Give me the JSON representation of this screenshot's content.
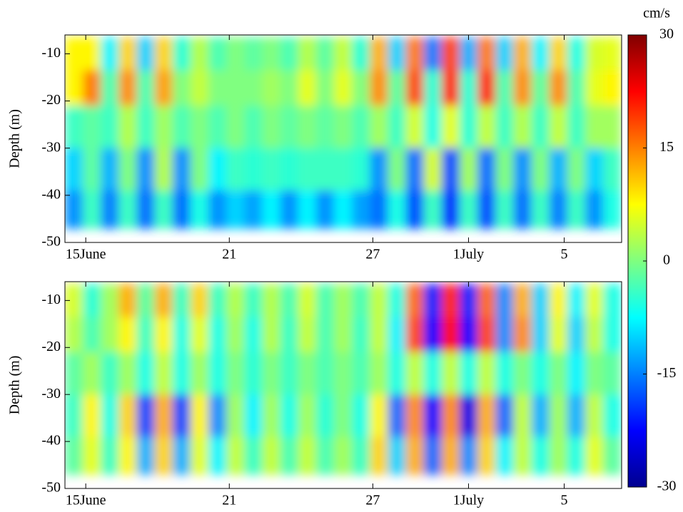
{
  "chart_data": [
    {
      "type": "heatmap",
      "ylabel": "Depth (m)",
      "x": [
        14.5,
        15.25,
        16,
        16.75,
        17.5,
        18.25,
        19,
        19.75,
        20.5,
        21.25,
        22,
        22.75,
        23.5,
        24.25,
        25,
        25.75,
        26.5,
        27.25,
        28,
        28.75,
        29.5,
        30.25,
        31,
        31.75,
        32.5,
        33.25,
        34,
        34.75,
        35.5,
        36.25,
        37
      ],
      "y": [
        -10,
        -17,
        -25,
        -35,
        -43
      ],
      "z": [
        [
          8,
          8,
          -8,
          10,
          -10,
          10,
          -5,
          3,
          -3,
          0,
          -2,
          0,
          -3,
          3,
          -2,
          4,
          -5,
          12,
          -10,
          15,
          -15,
          18,
          -12,
          15,
          -10,
          12,
          -8,
          10,
          -6,
          5,
          6
        ],
        [
          8,
          15,
          -3,
          14,
          -3,
          13,
          0,
          4,
          0,
          0,
          0,
          2,
          0,
          6,
          0,
          6,
          0,
          14,
          -2,
          18,
          -5,
          20,
          -5,
          20,
          -3,
          14,
          -2,
          14,
          -3,
          6,
          8
        ],
        [
          -4,
          -2,
          -4,
          3,
          -4,
          2,
          -3,
          0,
          -3,
          0,
          -3,
          0,
          -2,
          0,
          -2,
          0,
          -3,
          2,
          -4,
          5,
          -6,
          6,
          -5,
          4,
          -4,
          3,
          -4,
          4,
          -4,
          2,
          2
        ],
        [
          -10,
          -2,
          -12,
          0,
          -14,
          3,
          -14,
          0,
          -8,
          -4,
          -5,
          -4,
          -5,
          -4,
          -4,
          -4,
          -5,
          -14,
          0,
          -16,
          5,
          -18,
          2,
          -16,
          0,
          -14,
          0,
          -12,
          0,
          -10,
          -4
        ],
        [
          -14,
          -4,
          -15,
          -4,
          -16,
          -4,
          -16,
          -6,
          -14,
          -10,
          -13,
          -8,
          -14,
          -8,
          -14,
          -8,
          -13,
          -16,
          -6,
          -18,
          -4,
          -20,
          -4,
          -18,
          -4,
          -16,
          -4,
          -15,
          -4,
          -14,
          -6
        ]
      ],
      "xlim": [
        14.13,
        37.4
      ],
      "ylim": [
        -50,
        -6
      ],
      "xticks": [
        {
          "value": 15,
          "label": "15June"
        },
        21,
        27,
        {
          "value": 31,
          "label": "1July"
        },
        {
          "value": 35,
          "label": "5"
        }
      ],
      "yticks": [
        -50,
        -40,
        -30,
        -20,
        -10
      ]
    },
    {
      "type": "heatmap",
      "ylabel": "Depth (m)",
      "x": [
        14.5,
        15.25,
        16,
        16.75,
        17.5,
        18.25,
        19,
        19.75,
        20.5,
        21.25,
        22,
        22.75,
        23.5,
        24.25,
        25,
        25.75,
        26.5,
        27.25,
        28,
        28.75,
        29.5,
        30.25,
        31,
        31.75,
        32.5,
        33.25,
        34,
        34.75,
        35.5,
        36.25,
        37
      ],
      "y": [
        -10,
        -17,
        -25,
        -35,
        -43
      ],
      "z": [
        [
          5,
          -5,
          2,
          12,
          -2,
          12,
          -4,
          10,
          -4,
          3,
          -4,
          3,
          -3,
          5,
          -3,
          2,
          -3,
          4,
          -6,
          16,
          -20,
          20,
          -20,
          16,
          -14,
          12,
          -10,
          8,
          -8,
          6,
          -6
        ],
        [
          3,
          -3,
          2,
          8,
          -4,
          8,
          -6,
          6,
          -6,
          2,
          -6,
          3,
          -4,
          4,
          -3,
          2,
          -4,
          4,
          -8,
          18,
          -22,
          22,
          -22,
          18,
          -14,
          14,
          -10,
          6,
          -10,
          4,
          -6
        ],
        [
          -2,
          2,
          -4,
          2,
          -6,
          4,
          -6,
          2,
          -6,
          0,
          -5,
          0,
          -4,
          0,
          -3,
          0,
          -3,
          2,
          -6,
          4,
          -6,
          4,
          -6,
          4,
          -6,
          0,
          -6,
          0,
          -8,
          0,
          -2
        ],
        [
          -4,
          8,
          -6,
          10,
          -18,
          12,
          -18,
          8,
          -14,
          2,
          -8,
          2,
          -6,
          2,
          -5,
          0,
          -6,
          8,
          -16,
          14,
          -22,
          14,
          -24,
          12,
          -16,
          4,
          -12,
          2,
          -12,
          4,
          -6
        ],
        [
          -2,
          6,
          -4,
          8,
          -12,
          10,
          -12,
          6,
          -8,
          4,
          -4,
          4,
          -3,
          4,
          -3,
          2,
          -4,
          10,
          -10,
          12,
          -16,
          12,
          -14,
          10,
          -8,
          4,
          -6,
          2,
          -6,
          6,
          -2
        ]
      ],
      "xlim": [
        14.13,
        37.4
      ],
      "ylim": [
        -50,
        -6
      ],
      "xticks": [
        {
          "value": 15,
          "label": "15June"
        },
        21,
        27,
        {
          "value": 31,
          "label": "1July"
        },
        {
          "value": 35,
          "label": "5"
        }
      ],
      "yticks": [
        -50,
        -40,
        -30,
        -20,
        -10
      ]
    }
  ],
  "colorbar": {
    "label": "cm/s",
    "lim": [
      -30,
      30
    ],
    "ticks": [
      30,
      15,
      0,
      -15,
      -30
    ],
    "colormap": "jet"
  }
}
